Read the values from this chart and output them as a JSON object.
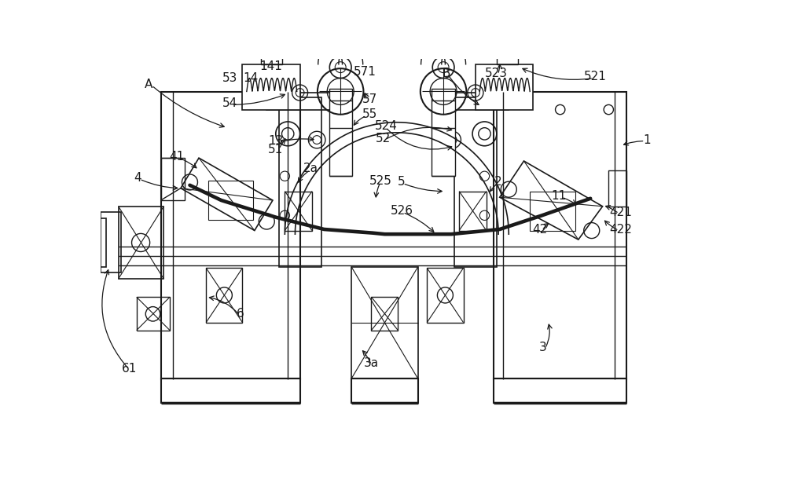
{
  "bg_color": "#ffffff",
  "line_color": "#1a1a1a",
  "lw": 1.0,
  "blw": 2.5,
  "fig_width": 10.0,
  "fig_height": 6.24,
  "xlim": [
    0,
    1000
  ],
  "ylim": [
    0,
    624
  ]
}
